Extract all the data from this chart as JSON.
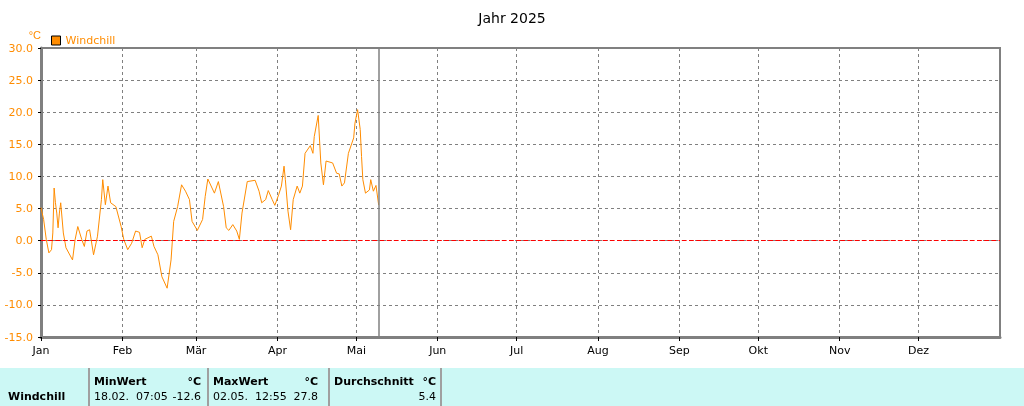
{
  "chart_data": {
    "type": "line",
    "title": "Jahr 2025",
    "ylabel": "°C",
    "x": [
      "2025-01-01",
      "2025-01-02",
      "2025-01-03",
      "2025-01-04",
      "2025-01-05T00:00",
      "2025-01-05T12:00",
      "2025-01-06T00:00",
      "2025-01-06T12:00",
      "2025-01-07T00:00",
      "2025-01-07T12:00",
      "2025-01-08T00:00",
      "2025-01-08T12:00",
      "2025-01-09T12:00",
      "2025-01-10T12:00",
      "2025-01-13",
      "2025-01-14",
      "2025-01-15",
      "2025-01-16T12:00",
      "2025-01-17T12:00",
      "2025-01-18T12:00",
      "2025-01-19T12:00",
      "2025-01-21",
      "2025-01-22T12:00",
      "2025-01-24T00:00",
      "2025-01-24T12:00",
      "2025-01-25T12:00",
      "2025-01-26T12:00",
      "2025-01-27T12:00",
      "2025-01-29T12:00",
      "2025-01-31T12:00",
      "2025-02-01T12:00",
      "2025-02-03",
      "2025-02-04T12:00",
      "2025-02-06",
      "2025-02-07T12:00",
      "2025-02-08T12:00",
      "2025-02-09T12:00",
      "2025-02-12",
      "2025-02-13",
      "2025-02-14T12:00",
      "2025-02-16",
      "2025-02-18",
      "2025-02-19T12:00",
      "2025-02-20T12:00",
      "2025-02-22",
      "2025-02-23T12:00",
      "2025-02-25",
      "2025-02-26T12:00",
      "2025-02-27T12:00",
      "2025-03-01T12:00",
      "2025-03-03T12:00",
      "2025-03-04T12:00",
      "2025-03-05T12:00",
      "2025-03-08",
      "2025-03-09T12:00",
      "2025-03-11T12:00",
      "2025-03-12T12:00",
      "2025-03-13T12:00",
      "2025-03-15",
      "2025-03-16T12:00",
      "2025-03-17T12:00",
      "2025-03-18T12:00",
      "2025-03-20T12:00",
      "2025-03-23T12:00",
      "2025-03-25",
      "2025-03-26",
      "2025-03-27T12:00",
      "2025-03-28T12:00",
      "2025-03-30",
      "2025-03-31",
      "2025-04-01T12:00",
      "2025-04-02T12:00",
      "2025-04-03T12:00",
      "2025-04-04T00:00",
      "2025-04-05",
      "2025-04-06",
      "2025-04-07",
      "2025-04-08T12:00",
      "2025-04-09T12:00",
      "2025-04-10T12:00",
      "2025-04-11T12:00",
      "2025-04-13T12:00",
      "2025-04-14T12:00",
      "2025-04-15T00:00",
      "2025-04-16T12:00",
      "2025-04-17T12:00",
      "2025-04-18T12:00",
      "2025-04-19T12:00",
      "2025-04-22",
      "2025-04-23T12:00",
      "2025-04-24T12:00",
      "2025-04-25T12:00",
      "2025-04-26T12:00",
      "2025-04-28",
      "2025-04-30T00:00",
      "2025-04-30T12:00",
      "2025-05-01T12:00",
      "2025-05-02T12:00",
      "2025-05-03T00:00",
      "2025-05-03T12:00",
      "2025-05-04T12:00",
      "2025-05-06T00:00",
      "2025-05-06T12:00",
      "2025-05-07T12:00",
      "2025-05-08T12:00",
      "2025-05-09T12:00"
    ],
    "series": [
      {
        "name": "Windchill",
        "color": "#ff8c00",
        "values": [
          5.1,
          3.3,
          0.2,
          -1.9,
          -1.4,
          1.2,
          8.2,
          5.9,
          4.3,
          2.0,
          4.3,
          5.9,
          1.2,
          -1.1,
          -3.0,
          0.2,
          2.2,
          0.2,
          -0.9,
          1.5,
          1.7,
          -2.2,
          0.7,
          6.4,
          9.5,
          5.6,
          8.5,
          5.9,
          5.3,
          2.2,
          0.2,
          -1.4,
          -0.4,
          1.5,
          1.3,
          -1.1,
          0.2,
          0.7,
          -0.9,
          -2.2,
          -5.6,
          -7.4,
          -3.0,
          3.0,
          5.3,
          8.7,
          7.7,
          6.4,
          3.0,
          1.6,
          3.3,
          6.9,
          9.6,
          7.4,
          9.2,
          5.3,
          2.0,
          1.6,
          2.5,
          1.5,
          0.2,
          4.3,
          9.2,
          9.4,
          7.7,
          5.9,
          6.4,
          7.8,
          6.4,
          5.5,
          7.2,
          8.5,
          11.6,
          9.5,
          4.6,
          1.7,
          6.4,
          8.5,
          7.4,
          8.5,
          13.6,
          14.8,
          13.6,
          16.2,
          19.5,
          12.1,
          8.7,
          12.4,
          12.1,
          10.5,
          10.4,
          8.5,
          9.0,
          13.6,
          16.0,
          18.3,
          20.4,
          17.3,
          13.1,
          9.5,
          7.4,
          7.9,
          9.5,
          7.7,
          8.6,
          5.6
        ]
      }
    ],
    "xlim": [
      "2025-01-01",
      "2026-01-01"
    ],
    "xticks": [
      {
        "value": "2025-01-01",
        "label": "Jan"
      },
      {
        "value": "2025-02-01",
        "label": "Feb"
      },
      {
        "value": "2025-03-01",
        "label": "Mär"
      },
      {
        "value": "2025-04-01",
        "label": "Apr"
      },
      {
        "value": "2025-05-01",
        "label": "Mai"
      },
      {
        "value": "2025-06-01",
        "label": "Jun"
      },
      {
        "value": "2025-07-01",
        "label": "Jul"
      },
      {
        "value": "2025-08-01",
        "label": "Aug"
      },
      {
        "value": "2025-09-01",
        "label": "Sep"
      },
      {
        "value": "2025-10-01",
        "label": "Okt"
      },
      {
        "value": "2025-11-01",
        "label": "Nov"
      },
      {
        "value": "2025-12-01",
        "label": "Dez"
      }
    ],
    "ylim": [
      -15,
      30
    ],
    "yticks": [
      {
        "value": -15,
        "label": "-15.0"
      },
      {
        "value": -10,
        "label": "-10.0"
      },
      {
        "value": -5,
        "label": "-5.0"
      },
      {
        "value": 0,
        "label": "0.0"
      },
      {
        "value": 5,
        "label": "5.0"
      },
      {
        "value": 10,
        "label": "10.0"
      },
      {
        "value": 15,
        "label": "15.0"
      },
      {
        "value": 20,
        "label": "20.0"
      },
      {
        "value": 25,
        "label": "25.0"
      },
      {
        "value": 30,
        "label": "30.0"
      }
    ],
    "ref_lines": [
      {
        "axis": "y",
        "value": 0,
        "color": "#ff0000",
        "line_style": "dashed"
      },
      {
        "axis": "x",
        "value": "2025-05-09T12:00",
        "color": "#808080",
        "line_style": "solid"
      }
    ],
    "grid": true,
    "legend": "top left",
    "marker": "none",
    "line_style": "solid",
    "annotations": [
      "Windchill",
      "MinWert",
      "°C",
      "18.02.  07:05",
      "-12.6",
      "MaxWert",
      "°C",
      "02.05.  12:55",
      "27.8",
      "Durchschnitt",
      "°C",
      "5.4"
    ]
  }
}
